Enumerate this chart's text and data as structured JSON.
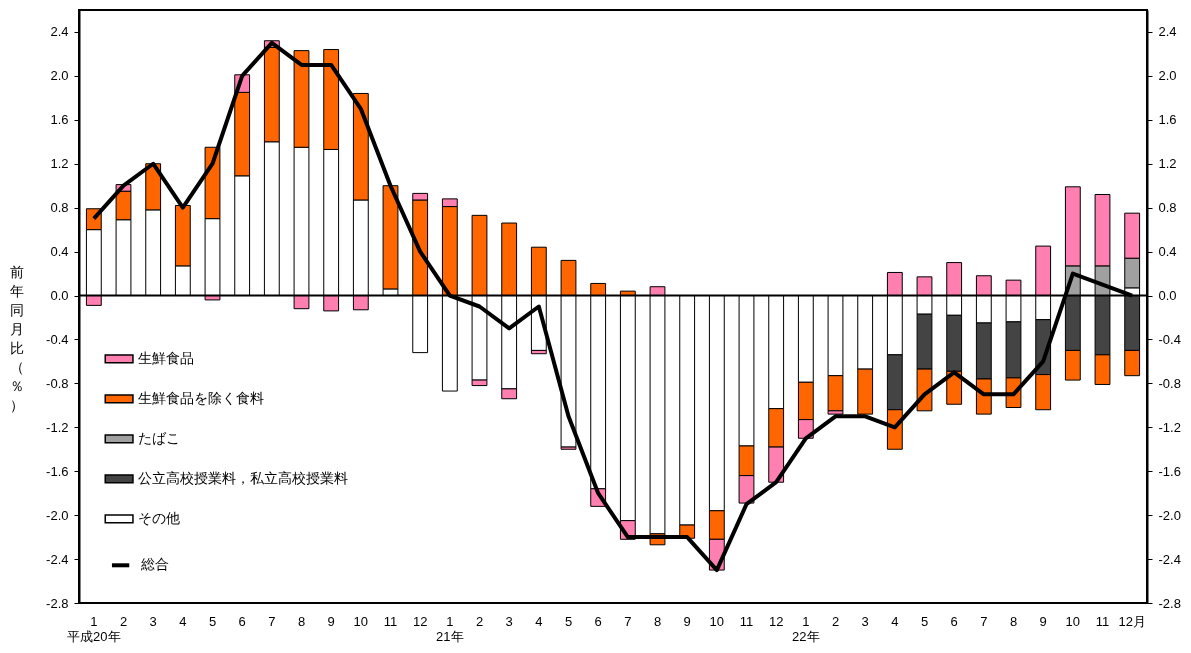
{
  "chart_data": {
    "type": "bar",
    "stacked": true,
    "ylabel": "前年同月比（％）",
    "categories": [
      "1\n平成20年",
      "2",
      "3",
      "4",
      "5",
      "6",
      "7",
      "8",
      "9",
      "10",
      "11",
      "12",
      "1\n21年",
      "2",
      "3",
      "4",
      "5",
      "6",
      "7",
      "8",
      "9",
      "10",
      "11",
      "12",
      "1\n22年",
      "2",
      "3",
      "4",
      "5",
      "6",
      "7",
      "8",
      "9",
      "10",
      "11",
      "12月"
    ],
    "series": [
      {
        "name": "その他",
        "color": "#ffffff",
        "values": [
          0.6,
          0.69,
          0.78,
          0.27,
          0.7,
          1.09,
          1.4,
          1.35,
          1.33,
          0.87,
          0.06,
          -0.52,
          -0.87,
          -0.77,
          -0.85,
          -0.5,
          -1.38,
          -1.76,
          -2.05,
          -2.17,
          -2.09,
          -1.96,
          -1.37,
          -1.03,
          -0.79,
          -0.73,
          -0.67,
          -0.54,
          -0.17,
          -0.18,
          -0.25,
          -0.24,
          -0.22,
          null,
          null,
          0.07
        ]
      },
      {
        "name": "公立高校授業料，私立高校授業料",
        "color": "#444444",
        "values": [
          null,
          null,
          null,
          null,
          null,
          null,
          null,
          null,
          null,
          null,
          null,
          null,
          null,
          null,
          null,
          null,
          null,
          null,
          null,
          null,
          null,
          null,
          null,
          null,
          null,
          null,
          null,
          -0.5,
          -0.5,
          -0.51,
          -0.51,
          -0.51,
          -0.5,
          -0.5,
          -0.54,
          -0.5
        ]
      },
      {
        "name": "たばこ",
        "color": "#a0a0a0",
        "values": [
          null,
          null,
          null,
          null,
          null,
          null,
          null,
          null,
          null,
          null,
          null,
          null,
          null,
          null,
          null,
          null,
          null,
          null,
          null,
          null,
          null,
          null,
          null,
          null,
          null,
          null,
          null,
          null,
          null,
          null,
          null,
          null,
          null,
          0.27,
          0.27,
          0.27
        ]
      },
      {
        "name": "生鮮食品を除く食料",
        "color": "#ff6600",
        "values": [
          0.19,
          0.26,
          0.42,
          0.55,
          0.65,
          0.76,
          0.86,
          0.88,
          0.91,
          0.97,
          0.94,
          0.87,
          0.81,
          0.73,
          0.66,
          0.44,
          0.32,
          0.11,
          0.04,
          -0.1,
          -0.12,
          -0.26,
          -0.27,
          -0.35,
          -0.34,
          -0.32,
          -0.41,
          -0.36,
          -0.38,
          -0.3,
          -0.32,
          -0.27,
          -0.32,
          -0.27,
          -0.27,
          -0.23
        ]
      },
      {
        "name": "生鮮食品",
        "color": "#ff7fb0",
        "values": [
          -0.09,
          0.06,
          null,
          null,
          -0.04,
          0.16,
          0.06,
          -0.12,
          -0.14,
          -0.13,
          null,
          0.06,
          0.07,
          -0.05,
          -0.09,
          -0.03,
          -0.02,
          -0.16,
          -0.17,
          0.08,
          null,
          -0.28,
          -0.25,
          -0.32,
          -0.17,
          -0.03,
          null,
          0.21,
          0.17,
          0.3,
          0.18,
          0.14,
          0.45,
          0.72,
          0.65,
          0.41
        ]
      },
      {
        "name": "総合",
        "type": "line",
        "color": "#000000",
        "values": [
          0.7,
          1.0,
          1.2,
          0.8,
          1.2,
          2.0,
          2.3,
          2.1,
          2.1,
          1.7,
          1.0,
          0.4,
          0.0,
          -0.1,
          -0.3,
          -0.1,
          -1.1,
          -1.8,
          -2.2,
          -2.2,
          -2.2,
          -2.5,
          -1.9,
          -1.7,
          -1.3,
          -1.1,
          -1.1,
          -1.2,
          -0.9,
          -0.7,
          -0.9,
          -0.9,
          -0.6,
          0.2,
          0.1,
          0.0
        ]
      }
    ],
    "ylim": [
      -2.8,
      2.6
    ],
    "yticks": [
      {
        "value": -2.8,
        "label": "-2.8"
      },
      {
        "value": -2.4,
        "label": "-2.4"
      },
      {
        "value": -2,
        "label": "-2.0"
      },
      {
        "value": -1.6,
        "label": "-1.6"
      },
      {
        "value": -1.2,
        "label": "-1.2"
      },
      {
        "value": -0.8,
        "label": "-0.8"
      },
      {
        "value": -0.4,
        "label": "-0.4"
      },
      {
        "value": 0,
        "label": "0.0"
      },
      0.4,
      0.8,
      1.2,
      1.6,
      {
        "value": 2,
        "label": "2.0"
      },
      2.4
    ],
    "y2lim": [
      -2.8,
      2.6
    ],
    "y2ticks": [
      {
        "value": -2.8,
        "label": "-2.8"
      },
      {
        "value": -2.4,
        "label": "-2.4"
      },
      {
        "value": -2,
        "label": "-2.0"
      },
      {
        "value": -1.6,
        "label": "-1.6"
      },
      {
        "value": -1.2,
        "label": "-1.2"
      },
      {
        "value": -0.8,
        "label": "-0.8"
      },
      {
        "value": -0.4,
        "label": "-0.4"
      },
      {
        "value": 0,
        "label": "0.0"
      },
      0.4,
      0.8,
      1.2,
      1.6,
      {
        "value": 2,
        "label": "2.0"
      },
      2.4
    ],
    "ref_lines": [
      {
        "axis": "y",
        "value": 0,
        "color": "#000000"
      }
    ],
    "legend": "bottom left",
    "grid": false
  }
}
